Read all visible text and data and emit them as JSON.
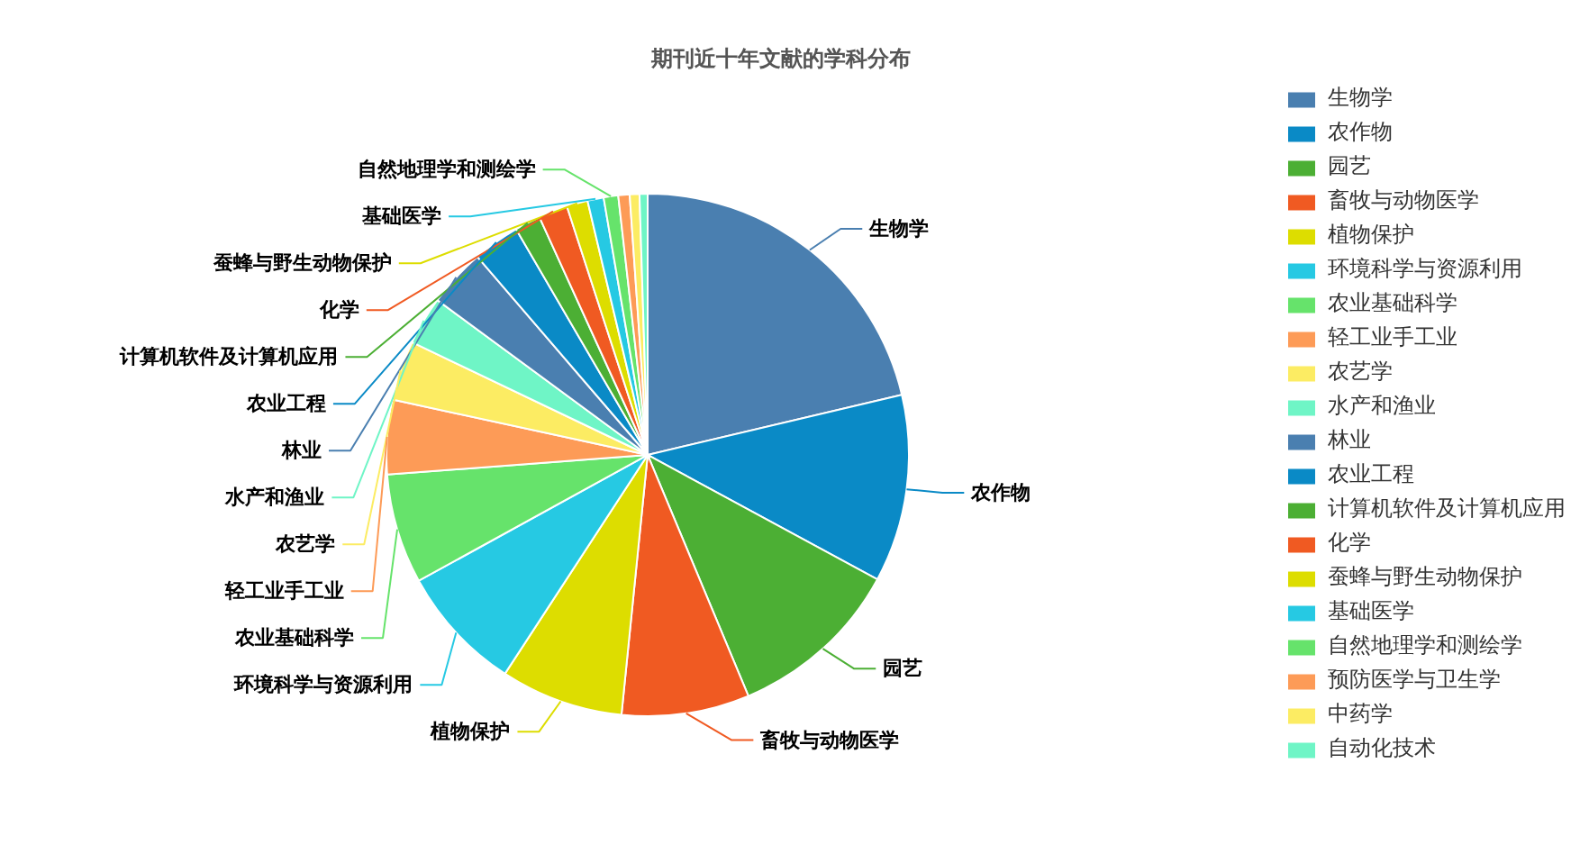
{
  "chart_data": {
    "type": "pie",
    "title": "期刊近十年文献的学科分布",
    "categories": [
      "生物学",
      "农作物",
      "园艺",
      "畜牧与动物医学",
      "植物保护",
      "环境科学与资源利用",
      "农业基础科学",
      "轻工业手工业",
      "农艺学",
      "水产和渔业",
      "林业",
      "农业工程",
      "计算机软件及计算机应用",
      "化学",
      "蚕蜂与野生动物保护",
      "基础医学",
      "自然地理学和测绘学",
      "预防医学与卫生学",
      "中药学",
      "自动化技术"
    ],
    "values": [
      21.3,
      11.6,
      10.8,
      7.9,
      7.6,
      7.8,
      6.8,
      4.6,
      3.7,
      3.0,
      3.6,
      2.9,
      1.6,
      1.8,
      1.3,
      1.0,
      0.9,
      0.7,
      0.6,
      0.5
    ],
    "colors": [
      "#4a7fb0",
      "#0a8ac6",
      "#4caf34",
      "#f05a22",
      "#dddd00",
      "#26c9e3",
      "#66e36b",
      "#fd9b57",
      "#fcec63",
      "#6ff5c6",
      "#4a7fb0",
      "#0a8ac6",
      "#4caf34",
      "#f05a22",
      "#dddd00",
      "#26c9e3",
      "#66e36b",
      "#fd9b57",
      "#fcec63",
      "#6ff5c6"
    ],
    "legend": "right"
  }
}
